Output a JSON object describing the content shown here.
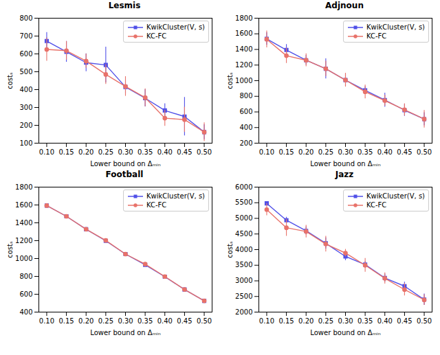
{
  "chart_data": [
    {
      "type": "line",
      "title": "Lesmis",
      "x": [
        0.1,
        0.15,
        0.2,
        0.25,
        0.3,
        0.35,
        0.4,
        0.45,
        0.5
      ],
      "xlabel": "Lower bound on Δₘᵢₙ",
      "ylabel": "costₛ",
      "xlim": [
        0.08,
        0.52
      ],
      "xticks": [
        {
          "value": 0.1,
          "label": "0.10"
        },
        0.15,
        {
          "value": 0.2,
          "label": "0.20"
        },
        0.25,
        {
          "value": 0.3,
          "label": "0.30"
        },
        0.35,
        {
          "value": 0.4,
          "label": "0.40"
        },
        0.45,
        {
          "value": 0.5,
          "label": "0.50"
        }
      ],
      "ylim": [
        100,
        800
      ],
      "yticks": [
        100,
        200,
        300,
        400,
        500,
        600,
        700,
        800
      ],
      "grid": false,
      "legend": "upper right",
      "series": [
        {
          "name": "KwikCluster(V, s)",
          "color": "#5050E8",
          "marker": "square",
          "values": [
            672,
            612,
            551,
            538,
            415,
            352,
            283,
            249,
            162
          ],
          "errors": [
            48,
            58,
            50,
            100,
            38,
            48,
            38,
            108,
            42
          ]
        },
        {
          "name": "KC-FC",
          "color": "#E8726A",
          "marker": "circle",
          "values": [
            625,
            618,
            560,
            485,
            418,
            355,
            240,
            232,
            162
          ],
          "errors": [
            65,
            52,
            40,
            55,
            55,
            50,
            45,
            70,
            52
          ]
        }
      ]
    },
    {
      "type": "line",
      "title": "Adjnoun",
      "x": [
        0.1,
        0.15,
        0.2,
        0.25,
        0.3,
        0.35,
        0.4,
        0.45,
        0.5
      ],
      "xlabel": "Lower bound on Δₘᵢₙ",
      "ylabel": "costₛ",
      "xlim": [
        0.08,
        0.52
      ],
      "xticks": [
        {
          "value": 0.1,
          "label": "0.10"
        },
        0.15,
        {
          "value": 0.2,
          "label": "0.20"
        },
        0.25,
        {
          "value": 0.3,
          "label": "0.30"
        },
        0.35,
        {
          "value": 0.4,
          "label": "0.40"
        },
        0.45,
        {
          "value": 0.5,
          "label": "0.50"
        }
      ],
      "ylim": [
        200,
        1800
      ],
      "yticks": [
        200,
        400,
        600,
        800,
        1000,
        1200,
        1400,
        1600,
        1800
      ],
      "grid": false,
      "legend": "upper right",
      "series": [
        {
          "name": "KwikCluster(V, s)",
          "color": "#5050E8",
          "marker": "square",
          "values": [
            1535,
            1393,
            1262,
            1153,
            1008,
            876,
            752,
            622,
            508
          ],
          "errors": [
            80,
            70,
            63,
            128,
            78,
            50,
            90,
            78,
            83
          ]
        },
        {
          "name": "KC-FC",
          "color": "#E8726A",
          "marker": "circle",
          "values": [
            1530,
            1320,
            1262,
            1153,
            1008,
            858,
            745,
            628,
            508
          ],
          "errors": [
            108,
            98,
            82,
            98,
            88,
            88,
            70,
            78,
            112
          ]
        }
      ]
    },
    {
      "type": "line",
      "title": "Football",
      "x": [
        0.1,
        0.15,
        0.2,
        0.25,
        0.3,
        0.35,
        0.4,
        0.45,
        0.5
      ],
      "xlabel": "Lower bound on Δₘᵢₙ",
      "ylabel": "costₛ",
      "xlim": [
        0.08,
        0.52
      ],
      "xticks": [
        {
          "value": 0.1,
          "label": "0.10"
        },
        0.15,
        {
          "value": 0.2,
          "label": "0.20"
        },
        0.25,
        {
          "value": 0.3,
          "label": "0.30"
        },
        0.35,
        {
          "value": 0.4,
          "label": "0.40"
        },
        0.45,
        {
          "value": 0.5,
          "label": "0.50"
        }
      ],
      "ylim": [
        400,
        1800
      ],
      "yticks": [
        400,
        600,
        800,
        1000,
        1200,
        1400,
        1600,
        1800
      ],
      "grid": false,
      "legend": "upper right",
      "series": [
        {
          "name": "KwikCluster(V, s)",
          "color": "#5050E8",
          "marker": "square",
          "values": [
            1593,
            1473,
            1328,
            1198,
            1050,
            930,
            796,
            653,
            526
          ],
          "errors": [
            10,
            12,
            12,
            12,
            12,
            12,
            12,
            12,
            12
          ]
        },
        {
          "name": "KC-FC",
          "color": "#E8726A",
          "marker": "circle",
          "values": [
            1593,
            1473,
            1328,
            1203,
            1050,
            938,
            798,
            653,
            526
          ],
          "errors": [
            12,
            18,
            18,
            18,
            18,
            18,
            18,
            18,
            18
          ]
        }
      ]
    },
    {
      "type": "line",
      "title": "Jazz",
      "x": [
        0.1,
        0.15,
        0.2,
        0.25,
        0.3,
        0.35,
        0.4,
        0.45,
        0.5
      ],
      "xlabel": "Lower bound on Δₘᵢₙ",
      "ylabel": "costₛ",
      "xlim": [
        0.08,
        0.52
      ],
      "xticks": [
        {
          "value": 0.1,
          "label": "0.10"
        },
        0.15,
        {
          "value": 0.2,
          "label": "0.20"
        },
        0.25,
        {
          "value": 0.3,
          "label": "0.30"
        },
        0.35,
        {
          "value": 0.4,
          "label": "0.40"
        },
        0.45,
        {
          "value": 0.5,
          "label": "0.50"
        }
      ],
      "ylim": [
        2000,
        6000
      ],
      "yticks": [
        2000,
        2500,
        3000,
        3500,
        4000,
        4500,
        5000,
        5500,
        6000
      ],
      "grid": false,
      "legend": "upper right",
      "series": [
        {
          "name": "KwikCluster(V, s)",
          "color": "#5050E8",
          "marker": "square",
          "values": [
            5480,
            4940,
            4600,
            4200,
            3780,
            3520,
            3090,
            2830,
            2400
          ],
          "errors": [
            60,
            100,
            130,
            180,
            130,
            100,
            130,
            130,
            180
          ]
        },
        {
          "name": "KC-FC",
          "color": "#E8726A",
          "marker": "circle",
          "values": [
            5280,
            4700,
            4580,
            4180,
            3890,
            3500,
            3080,
            2720,
            2390
          ],
          "errors": [
            190,
            270,
            200,
            250,
            120,
            220,
            180,
            200,
            170
          ]
        }
      ]
    }
  ]
}
